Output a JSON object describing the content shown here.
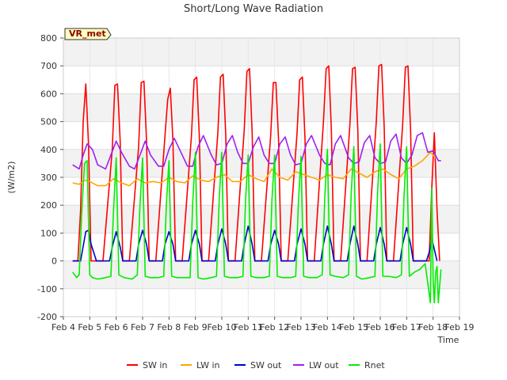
{
  "chart_data": {
    "type": "line",
    "title": "Short/Long Wave Radiation",
    "xlabel": "Time",
    "ylabel": "(W/m2)",
    "site_label": "VR_met",
    "xlim": [
      4,
      19
    ],
    "ylim": [
      -200,
      800
    ],
    "x_ticks": [
      4,
      5,
      6,
      7,
      8,
      9,
      10,
      11,
      12,
      13,
      14,
      15,
      16,
      17,
      18,
      19
    ],
    "x_tick_labels": [
      "Feb 4",
      "Feb 5",
      "Feb 6",
      "Feb 7",
      "Feb 8",
      "Feb 9",
      "Feb 10",
      "Feb 11",
      "Feb 12",
      "Feb 13",
      "Feb 14",
      "Feb 15",
      "Feb 16",
      "Feb 17",
      "Feb 18",
      "Feb 19"
    ],
    "y_ticks": [
      -200,
      -100,
      0,
      100,
      200,
      300,
      400,
      500,
      600,
      700,
      800
    ],
    "grid": true,
    "legend_position": "bottom",
    "x_units": "day of February",
    "series": [
      {
        "name": "SW in",
        "color": "#ff0000",
        "x": [
          4.35,
          4.55,
          4.65,
          4.75,
          4.85,
          4.95,
          5.05,
          5.15,
          5.25,
          5.5,
          5.85,
          5.95,
          6.05,
          6.15,
          6.25,
          6.5,
          6.85,
          6.95,
          7.05,
          7.15,
          7.25,
          7.5,
          7.85,
          7.95,
          8.05,
          8.15,
          8.25,
          8.5,
          8.85,
          8.95,
          9.05,
          9.15,
          9.25,
          9.5,
          9.85,
          9.95,
          10.05,
          10.15,
          10.25,
          10.5,
          10.85,
          10.95,
          11.05,
          11.15,
          11.25,
          11.5,
          11.85,
          11.95,
          12.05,
          12.15,
          12.25,
          12.5,
          12.85,
          12.95,
          13.05,
          13.15,
          13.25,
          13.5,
          13.85,
          13.95,
          14.05,
          14.15,
          14.25,
          14.5,
          14.85,
          14.95,
          15.05,
          15.15,
          15.25,
          15.5,
          15.85,
          15.95,
          16.05,
          16.15,
          16.25,
          16.5,
          16.85,
          16.95,
          17.05,
          17.15,
          17.25,
          17.5,
          17.85,
          17.95,
          18.05,
          18.15,
          18.25
        ],
        "y": [
          0,
          0,
          180,
          500,
          635,
          420,
          0,
          0,
          0,
          0,
          400,
          630,
          635,
          430,
          0,
          0,
          410,
          640,
          645,
          430,
          0,
          0,
          450,
          580,
          620,
          430,
          0,
          0,
          450,
          650,
          660,
          440,
          0,
          0,
          460,
          660,
          670,
          450,
          0,
          0,
          470,
          680,
          690,
          460,
          0,
          0,
          450,
          640,
          640,
          430,
          0,
          0,
          460,
          650,
          660,
          440,
          0,
          0,
          500,
          690,
          700,
          470,
          0,
          0,
          490,
          690,
          695,
          470,
          0,
          0,
          500,
          700,
          705,
          480,
          0,
          0,
          490,
          695,
          700,
          470,
          0,
          0,
          0,
          260,
          460,
          180,
          0
        ]
      },
      {
        "name": "LW in",
        "color": "#ffa500",
        "x": [
          4.35,
          4.6,
          4.8,
          5.0,
          5.3,
          5.6,
          5.9,
          6.2,
          6.5,
          6.8,
          7.1,
          7.4,
          7.7,
          8.0,
          8.3,
          8.6,
          8.9,
          9.2,
          9.5,
          9.8,
          10.1,
          10.4,
          10.7,
          11.0,
          11.3,
          11.6,
          11.9,
          12.2,
          12.5,
          12.8,
          13.1,
          13.4,
          13.7,
          14.0,
          14.3,
          14.6,
          14.9,
          15.2,
          15.5,
          15.8,
          16.1,
          16.4,
          16.7,
          17.0,
          17.3,
          17.6,
          17.9,
          18.1
        ],
        "y": [
          280,
          275,
          290,
          285,
          270,
          270,
          295,
          280,
          270,
          295,
          280,
          285,
          280,
          300,
          285,
          280,
          305,
          290,
          285,
          300,
          310,
          285,
          285,
          310,
          295,
          285,
          330,
          300,
          290,
          320,
          310,
          300,
          290,
          310,
          300,
          295,
          330,
          315,
          300,
          320,
          330,
          310,
          295,
          330,
          340,
          360,
          390,
          370
        ]
      },
      {
        "name": "SW out",
        "color": "#0000cd",
        "x": [
          4.35,
          4.65,
          4.85,
          4.95,
          5.05,
          5.25,
          5.75,
          5.85,
          6.0,
          6.15,
          6.25,
          6.75,
          6.85,
          7.0,
          7.15,
          7.25,
          7.75,
          7.85,
          8.0,
          8.15,
          8.25,
          8.75,
          8.85,
          9.0,
          9.15,
          9.25,
          9.75,
          9.85,
          10.0,
          10.15,
          10.25,
          10.75,
          10.85,
          11.0,
          11.15,
          11.25,
          11.75,
          11.85,
          12.0,
          12.15,
          12.25,
          12.75,
          12.85,
          13.0,
          13.15,
          13.25,
          13.75,
          13.85,
          14.0,
          14.15,
          14.25,
          14.75,
          14.85,
          15.0,
          15.15,
          15.25,
          15.75,
          15.85,
          16.0,
          16.15,
          16.25,
          16.75,
          16.85,
          17.0,
          17.15,
          17.25,
          17.75,
          17.85,
          17.95,
          18.15
        ],
        "y": [
          0,
          0,
          105,
          110,
          60,
          0,
          0,
          50,
          105,
          50,
          0,
          0,
          60,
          110,
          60,
          0,
          0,
          60,
          105,
          60,
          0,
          0,
          60,
          110,
          60,
          0,
          0,
          60,
          115,
          60,
          0,
          0,
          60,
          125,
          60,
          0,
          0,
          60,
          110,
          60,
          0,
          0,
          60,
          115,
          60,
          0,
          0,
          60,
          125,
          60,
          0,
          0,
          60,
          125,
          60,
          0,
          0,
          60,
          120,
          60,
          0,
          0,
          60,
          120,
          60,
          0,
          0,
          30,
          80,
          0
        ]
      },
      {
        "name": "LW out",
        "color": "#a020f0",
        "x": [
          4.35,
          4.6,
          4.75,
          4.9,
          5.1,
          5.3,
          5.6,
          5.8,
          6.0,
          6.2,
          6.5,
          6.7,
          6.9,
          7.1,
          7.3,
          7.6,
          7.8,
          8.0,
          8.2,
          8.5,
          8.7,
          8.9,
          9.1,
          9.3,
          9.6,
          9.8,
          10.0,
          10.2,
          10.4,
          10.6,
          10.8,
          11.0,
          11.2,
          11.4,
          11.6,
          11.8,
          12.0,
          12.2,
          12.4,
          12.6,
          12.8,
          13.0,
          13.2,
          13.4,
          13.7,
          13.9,
          14.1,
          14.3,
          14.5,
          14.8,
          15.0,
          15.2,
          15.4,
          15.6,
          15.8,
          16.0,
          16.2,
          16.4,
          16.6,
          16.8,
          17.0,
          17.2,
          17.4,
          17.6,
          17.8,
          18.0,
          18.2,
          18.3
        ],
        "y": [
          345,
          330,
          380,
          420,
          400,
          345,
          330,
          380,
          430,
          390,
          340,
          330,
          380,
          430,
          380,
          340,
          340,
          400,
          440,
          380,
          340,
          340,
          410,
          450,
          380,
          345,
          350,
          420,
          450,
          390,
          350,
          350,
          410,
          445,
          380,
          350,
          350,
          420,
          445,
          380,
          345,
          350,
          420,
          450,
          380,
          350,
          345,
          420,
          450,
          370,
          350,
          355,
          425,
          450,
          370,
          350,
          355,
          430,
          455,
          370,
          350,
          380,
          450,
          460,
          390,
          395,
          360,
          360
        ]
      },
      {
        "name": "Rnet",
        "color": "#00ee00",
        "x": [
          4.35,
          4.5,
          4.6,
          4.7,
          4.8,
          4.9,
          5.0,
          5.1,
          5.3,
          5.6,
          5.8,
          5.9,
          6.0,
          6.1,
          6.3,
          6.6,
          6.8,
          6.9,
          7.0,
          7.1,
          7.3,
          7.6,
          7.8,
          7.9,
          8.0,
          8.1,
          8.3,
          8.6,
          8.8,
          8.9,
          9.0,
          9.1,
          9.3,
          9.6,
          9.8,
          9.9,
          10.0,
          10.1,
          10.3,
          10.6,
          10.8,
          10.9,
          11.0,
          11.1,
          11.3,
          11.6,
          11.8,
          11.9,
          12.0,
          12.1,
          12.3,
          12.6,
          12.8,
          12.9,
          13.0,
          13.1,
          13.3,
          13.6,
          13.8,
          13.9,
          14.0,
          14.1,
          14.3,
          14.6,
          14.8,
          14.9,
          15.0,
          15.1,
          15.3,
          15.6,
          15.8,
          15.9,
          16.0,
          16.1,
          16.3,
          16.6,
          16.8,
          16.9,
          17.0,
          17.1,
          17.3,
          17.5,
          17.7,
          17.9,
          17.95,
          18.0,
          18.05,
          18.1,
          18.15,
          18.2,
          18.3
        ],
        "y": [
          -40,
          -60,
          -50,
          180,
          350,
          360,
          -50,
          -60,
          -65,
          -60,
          -55,
          180,
          370,
          -50,
          -60,
          -65,
          -50,
          200,
          370,
          -55,
          -60,
          -60,
          -55,
          200,
          360,
          -55,
          -60,
          -60,
          -60,
          210,
          390,
          -60,
          -65,
          -60,
          -55,
          220,
          390,
          -55,
          -60,
          -60,
          -55,
          220,
          380,
          -55,
          -60,
          -60,
          -55,
          220,
          380,
          -55,
          -60,
          -60,
          -55,
          210,
          375,
          -55,
          -60,
          -60,
          -50,
          230,
          400,
          -50,
          -55,
          -60,
          -50,
          240,
          410,
          -55,
          -65,
          -60,
          -55,
          250,
          420,
          -55,
          -55,
          -60,
          -50,
          230,
          410,
          -55,
          -40,
          -30,
          -10,
          -150,
          260,
          -60,
          -150,
          -40,
          -20,
          -150,
          -30
        ]
      }
    ]
  }
}
